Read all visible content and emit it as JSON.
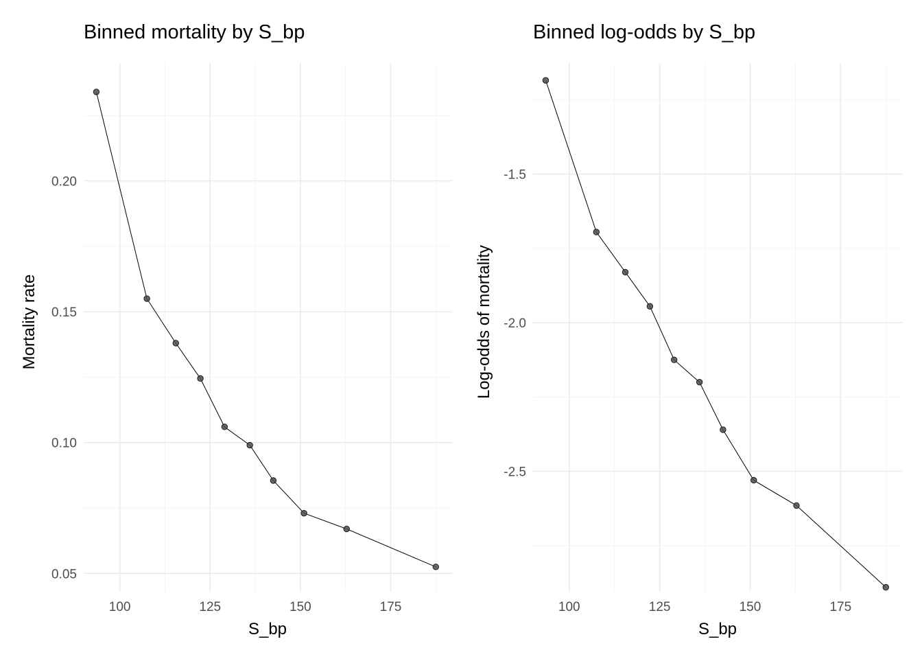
{
  "chart_data": [
    {
      "type": "line",
      "title": "Binned mortality by S_bp",
      "xlabel": "S_bp",
      "ylabel": "Mortality rate",
      "xlim": [
        90,
        192
      ],
      "ylim": [
        0.043,
        0.245
      ],
      "grid": true,
      "x_ticks": [
        100,
        125,
        150,
        175
      ],
      "x_tick_labels": [
        "100",
        "125",
        "150",
        "175"
      ],
      "x_minor_ticks": [
        112.5,
        137.5,
        162.5,
        187.5
      ],
      "y_ticks": [
        0.05,
        0.1,
        0.15,
        0.2
      ],
      "y_tick_labels": [
        "0.05",
        "0.10",
        "0.15",
        "0.20"
      ],
      "y_minor_ticks": [
        0.075,
        0.125,
        0.175,
        0.225
      ],
      "series": [
        {
          "x": [
            93.5,
            107.5,
            115.5,
            122.3,
            129.0,
            136.0,
            142.5,
            151.0,
            162.8,
            187.5
          ],
          "y": [
            0.234,
            0.155,
            0.138,
            0.1245,
            0.106,
            0.099,
            0.0855,
            0.073,
            0.067,
            0.0525
          ]
        }
      ]
    },
    {
      "type": "line",
      "title": "Binned log-odds by S_bp",
      "xlabel": "S_bp",
      "ylabel": "Log-odds of mortality",
      "xlim": [
        90,
        192
      ],
      "ylim": [
        -2.905,
        -1.127
      ],
      "grid": true,
      "x_ticks": [
        100,
        125,
        150,
        175
      ],
      "x_tick_labels": [
        "100",
        "125",
        "150",
        "175"
      ],
      "x_minor_ticks": [
        112.5,
        137.5,
        162.5,
        187.5
      ],
      "y_ticks": [
        -2.5,
        -2.0,
        -1.5
      ],
      "y_tick_labels": [
        "-2.5",
        "-2.0",
        "-1.5"
      ],
      "y_minor_ticks": [
        -2.75,
        -2.25,
        -1.75,
        -1.25
      ],
      "series": [
        {
          "x": [
            93.5,
            107.5,
            115.5,
            122.3,
            129.0,
            136.0,
            142.5,
            151.0,
            162.8,
            187.5
          ],
          "y": [
            -1.185,
            -1.695,
            -1.83,
            -1.945,
            -2.125,
            -2.2,
            -2.36,
            -2.53,
            -2.615,
            -2.89
          ]
        }
      ]
    }
  ]
}
